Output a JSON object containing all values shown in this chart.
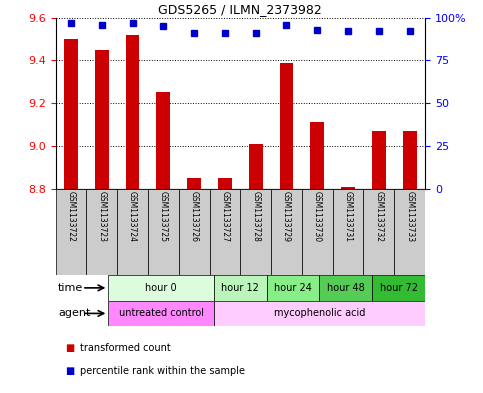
{
  "title": "GDS5265 / ILMN_2373982",
  "samples": [
    "GSM1133722",
    "GSM1133723",
    "GSM1133724",
    "GSM1133725",
    "GSM1133726",
    "GSM1133727",
    "GSM1133728",
    "GSM1133729",
    "GSM1133730",
    "GSM1133731",
    "GSM1133732",
    "GSM1133733"
  ],
  "transformed_count": [
    9.5,
    9.45,
    9.52,
    9.25,
    8.85,
    8.85,
    9.01,
    9.39,
    9.11,
    8.81,
    9.07,
    9.07
  ],
  "percentile_rank": [
    97,
    96,
    97,
    95,
    91,
    91,
    91,
    96,
    93,
    92,
    92,
    92
  ],
  "ymin": 8.8,
  "ymax": 9.6,
  "yticks": [
    8.8,
    9.0,
    9.2,
    9.4,
    9.6
  ],
  "y2min": 0,
  "y2max": 100,
  "y2ticks": [
    0,
    25,
    50,
    75,
    100
  ],
  "bar_color": "#cc0000",
  "dot_color": "#0000cc",
  "bar_bottom": 8.8,
  "time_groups": [
    {
      "label": "hour 0",
      "start": 0,
      "end": 4,
      "color": "#ddfcdd"
    },
    {
      "label": "hour 12",
      "start": 4,
      "end": 6,
      "color": "#bbf5bb"
    },
    {
      "label": "hour 24",
      "start": 6,
      "end": 8,
      "color": "#88ee88"
    },
    {
      "label": "hour 48",
      "start": 8,
      "end": 10,
      "color": "#55cc55"
    },
    {
      "label": "hour 72",
      "start": 10,
      "end": 12,
      "color": "#33bb33"
    }
  ],
  "agent_groups": [
    {
      "label": "untreated control",
      "start": 0,
      "end": 4,
      "color": "#ff88ff"
    },
    {
      "label": "mycophenolic acid",
      "start": 4,
      "end": 12,
      "color": "#ffccff"
    }
  ],
  "time_label": "time",
  "agent_label": "agent",
  "legend_bar_label": "transformed count",
  "legend_dot_label": "percentile rank within the sample",
  "sample_box_color": "#cccccc"
}
